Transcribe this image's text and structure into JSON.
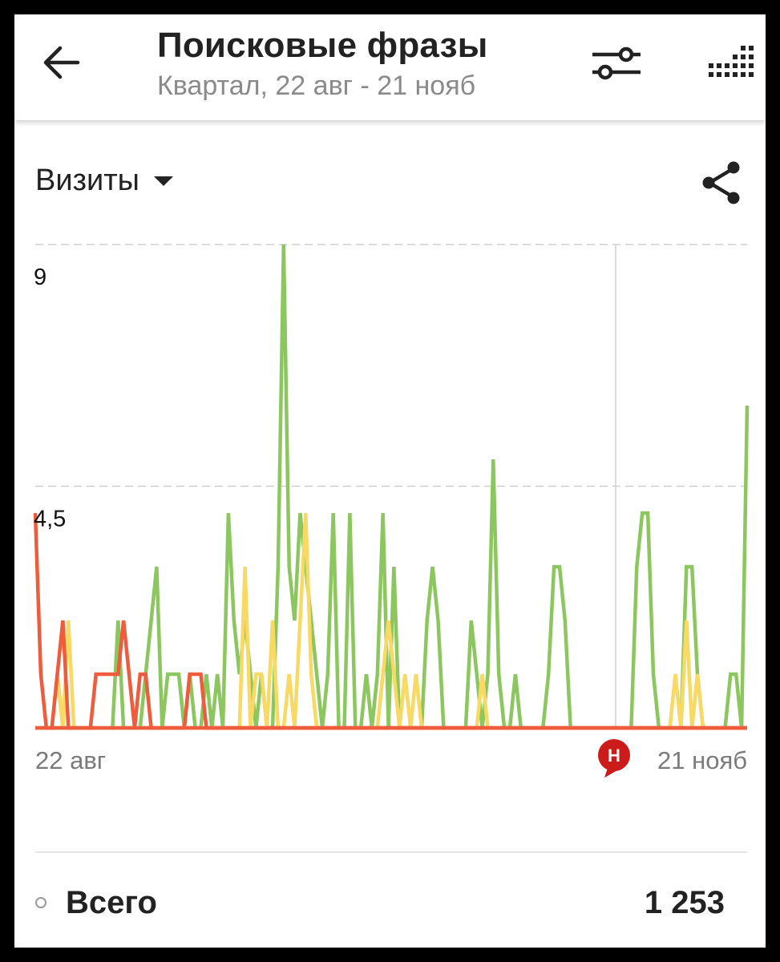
{
  "header": {
    "title": "Поисковые фразы",
    "subtitle": "Квартал, 22 авг - 21 нояб"
  },
  "metric": {
    "label": "Визиты"
  },
  "chart_data": {
    "type": "line",
    "ylim": [
      0,
      9
    ],
    "y_ticks": [
      "9",
      "4,5"
    ],
    "x_start_label": "22 авг",
    "x_end_label": "21 нояб",
    "annotation": {
      "label": "Н",
      "color": "#cc1b1b",
      "x_index": 65
    },
    "colors": [
      "#8cc65e",
      "#f8d964",
      "#ee5c3d"
    ],
    "series": [
      {
        "values": [
          0,
          0,
          0,
          0,
          0,
          0,
          0,
          0,
          0,
          0,
          0,
          0,
          0,
          0,
          0,
          2,
          0,
          0,
          0,
          0,
          1,
          2,
          3,
          0,
          1,
          1,
          1,
          0,
          1,
          0,
          0,
          1,
          0,
          1,
          0,
          4,
          2,
          1,
          2,
          1,
          0,
          1,
          0,
          0,
          3,
          9,
          3,
          2,
          4,
          3,
          2,
          1,
          0,
          1,
          4,
          0,
          0,
          4,
          0,
          0,
          1,
          0,
          1,
          4,
          0,
          3,
          0,
          0,
          0,
          0,
          0,
          2,
          3,
          2,
          0,
          0,
          0,
          0,
          0,
          2,
          1,
          0,
          1,
          5,
          1,
          0,
          0,
          1,
          0,
          0,
          0,
          0,
          0,
          1,
          3,
          3,
          2,
          0,
          0,
          0,
          0,
          0,
          0,
          0,
          0,
          0,
          0,
          0,
          0,
          3,
          4,
          4,
          1,
          0,
          0,
          0,
          0,
          0,
          3,
          3,
          1,
          0,
          0,
          0,
          0,
          0,
          1,
          1,
          0,
          6
        ]
      },
      {
        "values": [
          0,
          0,
          0,
          0,
          1,
          0,
          2,
          0,
          0,
          0,
          0,
          0,
          0,
          0,
          0,
          0,
          0,
          0,
          0,
          0,
          0,
          0,
          0,
          0,
          0,
          0,
          0,
          0,
          0,
          0,
          0,
          0,
          0,
          0,
          0,
          0,
          0,
          0,
          3,
          0,
          1,
          1,
          0,
          2,
          0,
          0,
          1,
          0,
          2,
          4,
          1,
          0,
          0,
          0,
          0,
          0,
          0,
          0,
          0,
          0,
          0,
          0,
          0,
          1,
          2,
          1,
          0,
          1,
          0,
          1,
          0,
          0,
          0,
          0,
          0,
          0,
          0,
          0,
          0,
          0,
          0,
          1,
          0,
          0,
          0,
          0,
          0,
          0,
          0,
          0,
          0,
          0,
          0,
          0,
          0,
          0,
          0,
          0,
          0,
          0,
          0,
          0,
          0,
          0,
          0,
          0,
          0,
          0,
          0,
          0,
          0,
          0,
          0,
          0,
          0,
          0,
          1,
          0,
          2,
          0,
          1,
          0,
          0,
          0,
          0,
          0,
          0,
          0,
          0,
          0
        ]
      },
      {
        "values": [
          4,
          1,
          0,
          0,
          1,
          2,
          0,
          0,
          0,
          0,
          0,
          1,
          1,
          1,
          1,
          1,
          2,
          1,
          0,
          1,
          1,
          0,
          0,
          0,
          0,
          0,
          0,
          0,
          1,
          1,
          1,
          0,
          0,
          0,
          0,
          0,
          0,
          0,
          0,
          0,
          0,
          0,
          0,
          0,
          0,
          0,
          0,
          0,
          0,
          0,
          0,
          0,
          0,
          0,
          0,
          0,
          0,
          0,
          0,
          0,
          0,
          0,
          0,
          0,
          0,
          0,
          0,
          0,
          0,
          0,
          0,
          0,
          0,
          0,
          0,
          0,
          0,
          0,
          0,
          0,
          0,
          0,
          0,
          0,
          0,
          0,
          0,
          0,
          0,
          0,
          0,
          0,
          0,
          0,
          0,
          0,
          0,
          0,
          0,
          0,
          0,
          0,
          0,
          0,
          0,
          0,
          0,
          0,
          0,
          0,
          0,
          0,
          0,
          0,
          0,
          0,
          0,
          0,
          0,
          0,
          0,
          0,
          0,
          0,
          0,
          0,
          0,
          0,
          0,
          0
        ]
      }
    ]
  },
  "summary": {
    "total_label": "Всего",
    "total_value": "1 253"
  }
}
